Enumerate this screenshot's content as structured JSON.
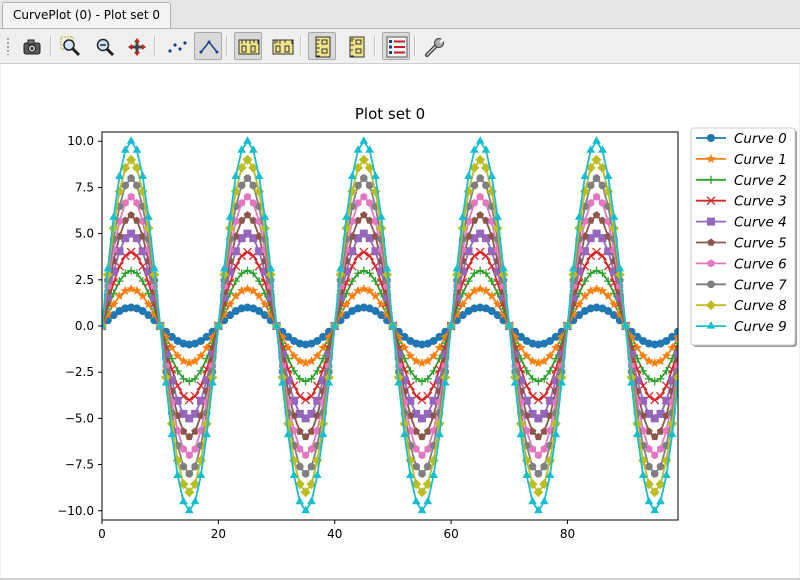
{
  "tab": {
    "label": "CurvePlot (0) - Plot set 0"
  },
  "toolbar": {
    "buttons": [
      {
        "name": "snapshot-button",
        "icon": "camera-icon"
      },
      {
        "name": "zoom-in-button",
        "icon": "zoom-in-icon"
      },
      {
        "name": "zoom-out-button",
        "icon": "zoom-out-icon"
      },
      {
        "name": "pan-button",
        "icon": "pan-arrows-icon"
      },
      {
        "name": "draw-points-button",
        "icon": "points-icon"
      },
      {
        "name": "draw-lines-button",
        "icon": "lines-icon",
        "active": true
      },
      {
        "name": "lin-x-button",
        "icon": "lin-x-scale-icon",
        "active": true
      },
      {
        "name": "log-x-button",
        "icon": "log-x-scale-icon"
      },
      {
        "name": "lin-y-button",
        "icon": "lin-y-scale-icon",
        "active": true
      },
      {
        "name": "log-y-button",
        "icon": "log-y-scale-icon"
      },
      {
        "name": "legend-button",
        "icon": "legend-icon",
        "active": true
      },
      {
        "name": "settings-button",
        "icon": "wrench-icon"
      }
    ]
  },
  "chart_data": {
    "type": "line",
    "title": "Plot set 0",
    "xlabel": "",
    "ylabel": "",
    "xlim": [
      0,
      99
    ],
    "ylim": [
      -10.5,
      10.5
    ],
    "x_ticks": [
      0,
      20,
      40,
      60,
      80
    ],
    "y_ticks": [
      10.0,
      7.5,
      5.0,
      2.5,
      0.0,
      -2.5,
      -5.0,
      -7.5,
      -10.0
    ],
    "y_tick_labels": [
      "10.0",
      "7.5",
      "5.0",
      "2.5",
      "0.0",
      "−2.5",
      "−5.0",
      "−7.5",
      "−10.0"
    ],
    "x_tick_labels": [
      "0",
      "20",
      "40",
      "60",
      "80"
    ],
    "grid": false,
    "legend_position": "outside-right-top",
    "x": {
      "start": 0,
      "end": 99,
      "step": 1
    },
    "function": "y = (i+1) * sin(2*pi*x/20)",
    "series": [
      {
        "name": "Curve 0",
        "amplitude": 1,
        "color": "#1f77b4",
        "marker": "circle"
      },
      {
        "name": "Curve 1",
        "amplitude": 2,
        "color": "#ff7f0e",
        "marker": "star"
      },
      {
        "name": "Curve 2",
        "amplitude": 3,
        "color": "#2ca02c",
        "marker": "plus"
      },
      {
        "name": "Curve 3",
        "amplitude": 4,
        "color": "#d62728",
        "marker": "x"
      },
      {
        "name": "Curve 4",
        "amplitude": 5,
        "color": "#9467bd",
        "marker": "square"
      },
      {
        "name": "Curve 5",
        "amplitude": 6,
        "color": "#8c564b",
        "marker": "pentagon"
      },
      {
        "name": "Curve 6",
        "amplitude": 7,
        "color": "#e377c2",
        "marker": "hexagon"
      },
      {
        "name": "Curve 7",
        "amplitude": 8,
        "color": "#7f7f7f",
        "marker": "octagon"
      },
      {
        "name": "Curve 8",
        "amplitude": 9,
        "color": "#bcbd22",
        "marker": "diamond"
      },
      {
        "name": "Curve 9",
        "amplitude": 10,
        "color": "#17becf",
        "marker": "triangle"
      }
    ]
  }
}
